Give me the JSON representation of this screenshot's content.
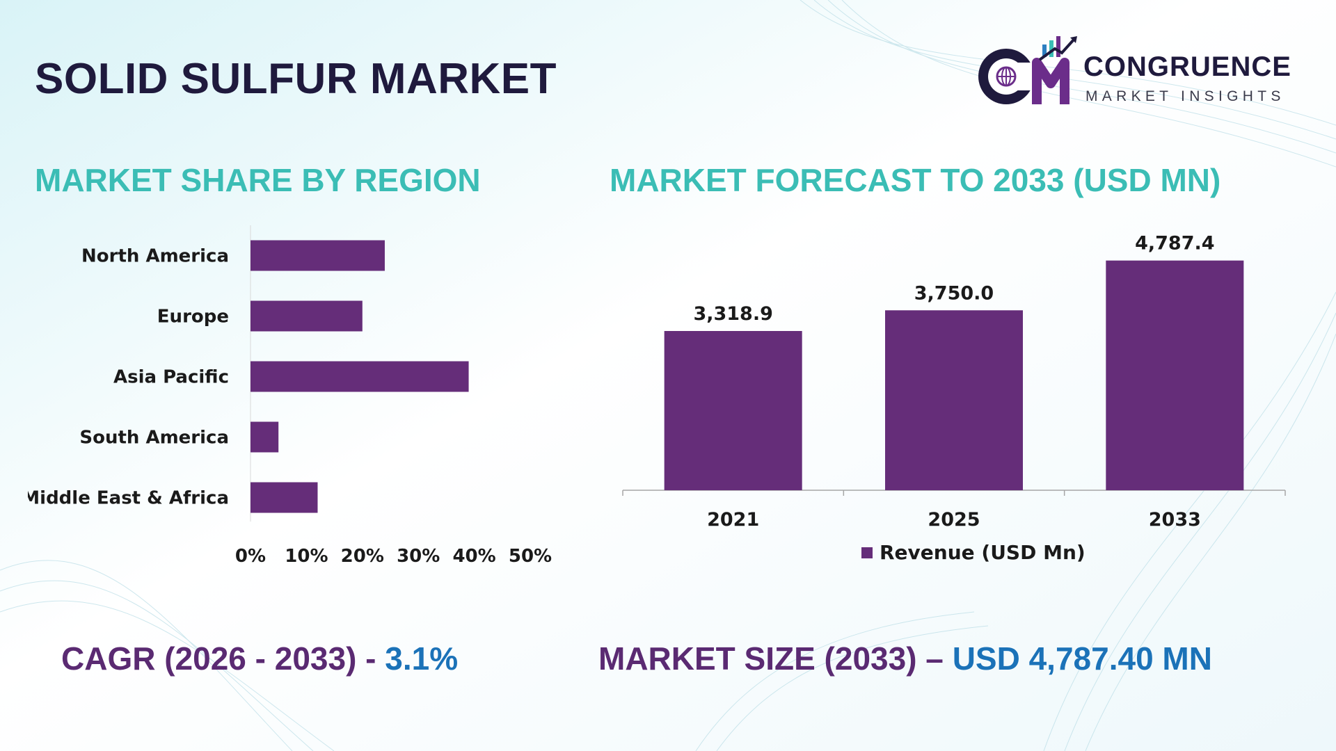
{
  "page": {
    "title": "SOLID SULFUR MARKET"
  },
  "brand": {
    "name": "CONGRUENCE",
    "tagline": "MARKET INSIGHTS",
    "colors": {
      "navy": "#1f1a3d",
      "purple": "#6b2d8a",
      "blue": "#2d7fc1",
      "teal": "#3bbdb5"
    }
  },
  "sections": {
    "share_title": "MARKET SHARE BY REGION",
    "forecast_title": "MARKET FORECAST TO 2033 (USD MN)"
  },
  "colors": {
    "bar": "#652d79",
    "section_title": "#3bbdb5",
    "stat_label": "#5a2a72",
    "stat_value": "#1b72b8"
  },
  "chart_data": [
    {
      "type": "bar",
      "orientation": "horizontal",
      "categories": [
        "North America",
        "Europe",
        "Asia Pacific",
        "South America",
        "Middle East & Africa"
      ],
      "values": [
        24,
        20,
        39,
        5,
        12
      ],
      "value_unit": "%",
      "xlim": [
        0,
        50
      ],
      "xticks": [
        "0%",
        "10%",
        "20%",
        "30%",
        "40%",
        "50%"
      ],
      "grid": false
    },
    {
      "type": "bar",
      "orientation": "vertical",
      "categories": [
        "2021",
        "2025",
        "2033"
      ],
      "series": [
        {
          "name": "Revenue (USD Mn)",
          "values": [
            3318.9,
            3750.0,
            4787.4
          ]
        }
      ],
      "data_labels": [
        "3,318.9",
        "3,750.0",
        "4,787.4"
      ],
      "ylim": [
        0,
        5000
      ],
      "legend": "bottom",
      "grid": false
    }
  ],
  "footer": {
    "cagr_label": "CAGR (2026 - 2033) -",
    "cagr_value": "3.1%",
    "size_label": "MARKET SIZE (2033) –",
    "size_value": "USD 4,787.40 MN"
  }
}
